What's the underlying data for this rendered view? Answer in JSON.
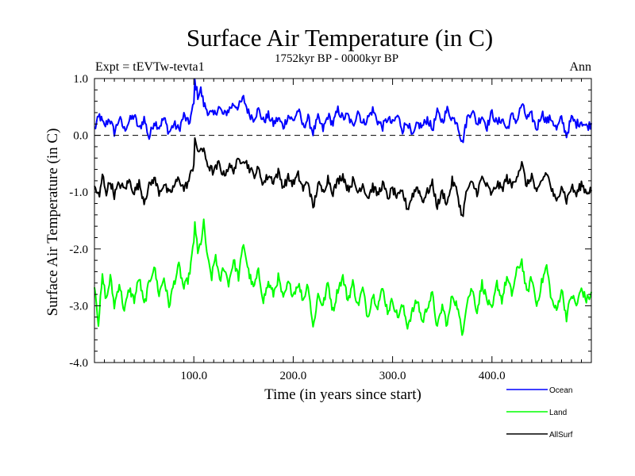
{
  "chart_data": {
    "type": "line",
    "title": "Surface Air Temperature (in C)",
    "subtitle": "1752kyr BP - 0000kyr BP",
    "experiment_label": "Expt = tEVTw-tevta1",
    "season_label": "Ann",
    "xlabel": "Time (in years since start)",
    "ylabel": "Surface Air Temperature (in C)",
    "xlim": [
      0,
      500
    ],
    "ylim": [
      -4.0,
      1.0
    ],
    "x_ticks": [
      100,
      200,
      300,
      400
    ],
    "x_tick_labels": [
      "100.0",
      "200.0",
      "300.0",
      "400.0"
    ],
    "y_ticks": [
      1.0,
      0.0,
      -1.0,
      -2.0,
      -3.0,
      -4.0
    ],
    "y_tick_labels": [
      "1.0",
      "0.0",
      "-1.0",
      "-2.0",
      "-3.0",
      "-4.0"
    ],
    "reference_line": 0.0,
    "legend_position": "bottom-right",
    "series": [
      {
        "name": "Ocean",
        "color": "#0000ff",
        "anchors": [
          [
            0,
            0.1
          ],
          [
            5,
            0.35
          ],
          [
            10,
            0.15
          ],
          [
            15,
            0.3
          ],
          [
            20,
            0.05
          ],
          [
            25,
            0.3
          ],
          [
            30,
            0.1
          ],
          [
            35,
            0.25
          ],
          [
            40,
            0.35
          ],
          [
            45,
            0.1
          ],
          [
            50,
            0.3
          ],
          [
            55,
            -0.05
          ],
          [
            60,
            0.25
          ],
          [
            65,
            0.15
          ],
          [
            70,
            0.3
          ],
          [
            75,
            0.05
          ],
          [
            80,
            0.2
          ],
          [
            85,
            0.1
          ],
          [
            90,
            0.35
          ],
          [
            95,
            0.2
          ],
          [
            100,
            0.55
          ],
          [
            101,
            0.95
          ],
          [
            104,
            0.7
          ],
          [
            107,
            0.8
          ],
          [
            110,
            0.55
          ],
          [
            115,
            0.4
          ],
          [
            120,
            0.35
          ],
          [
            125,
            0.5
          ],
          [
            130,
            0.35
          ],
          [
            135,
            0.45
          ],
          [
            140,
            0.55
          ],
          [
            145,
            0.5
          ],
          [
            150,
            0.65
          ],
          [
            155,
            0.4
          ],
          [
            160,
            0.3
          ],
          [
            165,
            0.45
          ],
          [
            170,
            0.25
          ],
          [
            175,
            0.35
          ],
          [
            180,
            0.2
          ],
          [
            185,
            0.3
          ],
          [
            190,
            0.15
          ],
          [
            195,
            0.35
          ],
          [
            200,
            0.25
          ],
          [
            205,
            0.45
          ],
          [
            210,
            0.15
          ],
          [
            215,
            0.3
          ],
          [
            220,
            0.05
          ],
          [
            225,
            0.3
          ],
          [
            230,
            0.1
          ],
          [
            235,
            0.35
          ],
          [
            240,
            0.2
          ],
          [
            245,
            0.45
          ],
          [
            250,
            0.3
          ],
          [
            255,
            0.35
          ],
          [
            260,
            0.15
          ],
          [
            265,
            0.45
          ],
          [
            270,
            0.2
          ],
          [
            275,
            0.3
          ],
          [
            280,
            0.45
          ],
          [
            285,
            0.25
          ],
          [
            290,
            0.15
          ],
          [
            295,
            0.3
          ],
          [
            300,
            0.2
          ],
          [
            305,
            0.35
          ],
          [
            310,
            0.1
          ],
          [
            315,
            0.25
          ],
          [
            320,
            -0.05
          ],
          [
            325,
            0.2
          ],
          [
            330,
            0.15
          ],
          [
            335,
            0.3
          ],
          [
            340,
            0.1
          ],
          [
            345,
            0.4
          ],
          [
            350,
            0.25
          ],
          [
            355,
            0.45
          ],
          [
            360,
            0.3
          ],
          [
            365,
            0.25
          ],
          [
            370,
            -0.15
          ],
          [
            375,
            0.3
          ],
          [
            380,
            0.45
          ],
          [
            385,
            0.2
          ],
          [
            390,
            0.35
          ],
          [
            395,
            0.15
          ],
          [
            400,
            0.4
          ],
          [
            405,
            0.2
          ],
          [
            410,
            0.3
          ],
          [
            415,
            0.1
          ],
          [
            420,
            0.35
          ],
          [
            425,
            0.25
          ],
          [
            430,
            0.55
          ],
          [
            435,
            0.3
          ],
          [
            440,
            0.35
          ],
          [
            445,
            0.1
          ],
          [
            450,
            0.4
          ],
          [
            455,
            0.25
          ],
          [
            460,
            0.3
          ],
          [
            465,
            0.1
          ],
          [
            470,
            0.3
          ],
          [
            475,
            0.0
          ],
          [
            480,
            0.3
          ],
          [
            485,
            0.2
          ],
          [
            490,
            0.25
          ],
          [
            495,
            0.15
          ],
          [
            500,
            0.2
          ]
        ]
      },
      {
        "name": "Land",
        "color": "#00ff00",
        "anchors": [
          [
            0,
            -2.6
          ],
          [
            4,
            -3.3
          ],
          [
            8,
            -2.5
          ],
          [
            12,
            -2.9
          ],
          [
            16,
            -2.5
          ],
          [
            20,
            -3.0
          ],
          [
            25,
            -2.6
          ],
          [
            30,
            -3.1
          ],
          [
            35,
            -2.7
          ],
          [
            40,
            -2.9
          ],
          [
            45,
            -2.5
          ],
          [
            50,
            -3.0
          ],
          [
            55,
            -2.6
          ],
          [
            60,
            -2.3
          ],
          [
            65,
            -2.8
          ],
          [
            70,
            -2.5
          ],
          [
            75,
            -3.0
          ],
          [
            80,
            -2.6
          ],
          [
            85,
            -2.3
          ],
          [
            90,
            -2.7
          ],
          [
            95,
            -2.5
          ],
          [
            100,
            -1.9
          ],
          [
            101,
            -1.5
          ],
          [
            104,
            -2.1
          ],
          [
            108,
            -1.8
          ],
          [
            110,
            -1.55
          ],
          [
            114,
            -2.2
          ],
          [
            118,
            -2.5
          ],
          [
            122,
            -2.1
          ],
          [
            126,
            -2.6
          ],
          [
            130,
            -2.3
          ],
          [
            135,
            -2.6
          ],
          [
            140,
            -2.2
          ],
          [
            145,
            -2.5
          ],
          [
            150,
            -1.9
          ],
          [
            155,
            -2.4
          ],
          [
            160,
            -2.7
          ],
          [
            165,
            -2.4
          ],
          [
            170,
            -2.9
          ],
          [
            175,
            -2.6
          ],
          [
            180,
            -2.8
          ],
          [
            185,
            -2.5
          ],
          [
            190,
            -2.9
          ],
          [
            195,
            -2.6
          ],
          [
            200,
            -2.8
          ],
          [
            205,
            -2.6
          ],
          [
            210,
            -2.9
          ],
          [
            215,
            -2.6
          ],
          [
            220,
            -3.4
          ],
          [
            225,
            -2.8
          ],
          [
            230,
            -3.0
          ],
          [
            235,
            -2.6
          ],
          [
            240,
            -3.1
          ],
          [
            245,
            -2.7
          ],
          [
            250,
            -2.5
          ],
          [
            255,
            -2.9
          ],
          [
            260,
            -2.6
          ],
          [
            265,
            -3.0
          ],
          [
            270,
            -2.7
          ],
          [
            275,
            -3.2
          ],
          [
            280,
            -2.8
          ],
          [
            285,
            -3.0
          ],
          [
            290,
            -2.7
          ],
          [
            295,
            -3.1
          ],
          [
            300,
            -2.9
          ],
          [
            305,
            -3.2
          ],
          [
            310,
            -3.0
          ],
          [
            315,
            -3.35
          ],
          [
            320,
            -3.1
          ],
          [
            325,
            -2.9
          ],
          [
            330,
            -3.3
          ],
          [
            335,
            -3.0
          ],
          [
            340,
            -2.8
          ],
          [
            345,
            -3.4
          ],
          [
            350,
            -3.0
          ],
          [
            355,
            -3.35
          ],
          [
            360,
            -2.8
          ],
          [
            365,
            -3.0
          ],
          [
            370,
            -3.5
          ],
          [
            375,
            -2.9
          ],
          [
            380,
            -2.7
          ],
          [
            385,
            -3.1
          ],
          [
            390,
            -2.6
          ],
          [
            395,
            -2.9
          ],
          [
            400,
            -3.1
          ],
          [
            405,
            -2.6
          ],
          [
            410,
            -2.9
          ],
          [
            415,
            -2.5
          ],
          [
            420,
            -2.8
          ],
          [
            425,
            -2.4
          ],
          [
            430,
            -2.2
          ],
          [
            435,
            -2.8
          ],
          [
            440,
            -2.5
          ],
          [
            445,
            -3.0
          ],
          [
            450,
            -2.6
          ],
          [
            455,
            -2.3
          ],
          [
            460,
            -2.9
          ],
          [
            465,
            -3.1
          ],
          [
            470,
            -2.7
          ],
          [
            475,
            -3.2
          ],
          [
            480,
            -2.8
          ],
          [
            485,
            -3.0
          ],
          [
            490,
            -2.7
          ],
          [
            495,
            -2.9
          ],
          [
            500,
            -2.8
          ]
        ]
      },
      {
        "name": "AllSurf",
        "color": "#000000",
        "anchors": [
          [
            0,
            -0.9
          ],
          [
            5,
            -1.1
          ],
          [
            8,
            -0.7
          ],
          [
            12,
            -1.0
          ],
          [
            16,
            -0.8
          ],
          [
            20,
            -1.05
          ],
          [
            25,
            -0.85
          ],
          [
            30,
            -0.95
          ],
          [
            35,
            -0.8
          ],
          [
            40,
            -1.0
          ],
          [
            45,
            -0.85
          ],
          [
            50,
            -1.15
          ],
          [
            55,
            -0.9
          ],
          [
            60,
            -0.75
          ],
          [
            65,
            -1.0
          ],
          [
            70,
            -0.85
          ],
          [
            75,
            -1.05
          ],
          [
            80,
            -0.9
          ],
          [
            85,
            -0.75
          ],
          [
            90,
            -0.95
          ],
          [
            95,
            -0.8
          ],
          [
            100,
            -0.5
          ],
          [
            101,
            0.0
          ],
          [
            104,
            -0.35
          ],
          [
            107,
            -0.2
          ],
          [
            110,
            -0.3
          ],
          [
            115,
            -0.55
          ],
          [
            120,
            -0.65
          ],
          [
            125,
            -0.5
          ],
          [
            130,
            -0.7
          ],
          [
            135,
            -0.55
          ],
          [
            140,
            -0.6
          ],
          [
            145,
            -0.45
          ],
          [
            150,
            -0.4
          ],
          [
            155,
            -0.55
          ],
          [
            160,
            -0.7
          ],
          [
            165,
            -0.6
          ],
          [
            170,
            -0.85
          ],
          [
            175,
            -0.7
          ],
          [
            180,
            -0.8
          ],
          [
            185,
            -0.65
          ],
          [
            190,
            -0.9
          ],
          [
            195,
            -0.75
          ],
          [
            200,
            -0.85
          ],
          [
            205,
            -0.7
          ],
          [
            210,
            -0.95
          ],
          [
            215,
            -0.8
          ],
          [
            220,
            -1.3
          ],
          [
            225,
            -0.85
          ],
          [
            230,
            -1.0
          ],
          [
            235,
            -0.75
          ],
          [
            240,
            -1.0
          ],
          [
            245,
            -0.8
          ],
          [
            250,
            -0.7
          ],
          [
            255,
            -0.95
          ],
          [
            260,
            -0.8
          ],
          [
            265,
            -1.0
          ],
          [
            270,
            -0.85
          ],
          [
            275,
            -1.1
          ],
          [
            280,
            -0.9
          ],
          [
            285,
            -1.05
          ],
          [
            290,
            -0.85
          ],
          [
            295,
            -1.1
          ],
          [
            300,
            -0.95
          ],
          [
            305,
            -1.1
          ],
          [
            310,
            -1.0
          ],
          [
            315,
            -1.3
          ],
          [
            320,
            -1.05
          ],
          [
            325,
            -0.9
          ],
          [
            330,
            -1.15
          ],
          [
            335,
            -1.0
          ],
          [
            340,
            -0.85
          ],
          [
            345,
            -1.25
          ],
          [
            350,
            -1.0
          ],
          [
            355,
            -1.2
          ],
          [
            360,
            -0.8
          ],
          [
            365,
            -1.0
          ],
          [
            370,
            -1.45
          ],
          [
            375,
            -0.95
          ],
          [
            380,
            -0.85
          ],
          [
            385,
            -1.0
          ],
          [
            390,
            -0.75
          ],
          [
            395,
            -0.9
          ],
          [
            400,
            -1.05
          ],
          [
            405,
            -0.85
          ],
          [
            410,
            -0.95
          ],
          [
            415,
            -0.75
          ],
          [
            420,
            -0.9
          ],
          [
            425,
            -0.7
          ],
          [
            430,
            -0.5
          ],
          [
            435,
            -0.9
          ],
          [
            440,
            -0.7
          ],
          [
            445,
            -1.05
          ],
          [
            450,
            -0.8
          ],
          [
            455,
            -0.65
          ],
          [
            460,
            -0.95
          ],
          [
            465,
            -1.2
          ],
          [
            470,
            -0.85
          ],
          [
            475,
            -1.15
          ],
          [
            480,
            -0.9
          ],
          [
            485,
            -1.05
          ],
          [
            490,
            -0.85
          ],
          [
            495,
            -1.0
          ],
          [
            500,
            -0.95
          ]
        ]
      }
    ]
  }
}
